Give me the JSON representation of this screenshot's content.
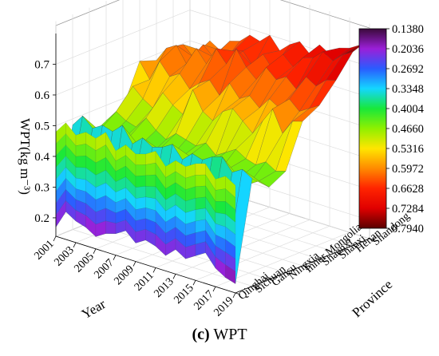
{
  "chart_data": {
    "type": "surface3d",
    "title": "",
    "zlabel": "WPT(kg m⁻³)",
    "ylabel": "Province",
    "xlabel": "Year",
    "zlim": [
      0.14,
      0.8
    ],
    "z_ticks": [
      "0.2",
      "0.3",
      "0.4",
      "0.5",
      "0.6",
      "0.7"
    ],
    "years": [
      2001,
      2002,
      2003,
      2004,
      2005,
      2006,
      2007,
      2008,
      2009,
      2010,
      2011,
      2012,
      2013,
      2014,
      2015,
      2016,
      2017,
      2018,
      2019
    ],
    "year_ticks": [
      "2001",
      "2003",
      "2005",
      "2007",
      "2009",
      "2011",
      "2013",
      "2015",
      "2017",
      "2019"
    ],
    "provinces": [
      "Qinghai",
      "Sichuan",
      "Gansu",
      "Ningxia",
      "Inner Mongolia",
      "Shaanxi",
      "Shanxi",
      "Henan",
      "Shandong"
    ],
    "values": [
      [
        0.17,
        0.23,
        0.21,
        0.2,
        0.18,
        0.2,
        0.21,
        0.23,
        0.2,
        0.22,
        0.21,
        0.19,
        0.22,
        0.2,
        0.22,
        0.24,
        0.2,
        0.18,
        0.17
      ],
      [
        0.48,
        0.52,
        0.49,
        0.51,
        0.5,
        0.53,
        0.48,
        0.51,
        0.49,
        0.5,
        0.52,
        0.48,
        0.51,
        0.5,
        0.52,
        0.53,
        0.49,
        0.51,
        0.49
      ],
      [
        0.42,
        0.45,
        0.44,
        0.43,
        0.46,
        0.44,
        0.42,
        0.45,
        0.43,
        0.44,
        0.46,
        0.43,
        0.45,
        0.44,
        0.46,
        0.44,
        0.43,
        0.45,
        0.44
      ],
      [
        0.45,
        0.49,
        0.47,
        0.46,
        0.5,
        0.47,
        0.45,
        0.48,
        0.47,
        0.46,
        0.48,
        0.45,
        0.47,
        0.49,
        0.47,
        0.46,
        0.48,
        0.46,
        0.47
      ],
      [
        0.47,
        0.55,
        0.52,
        0.5,
        0.56,
        0.53,
        0.51,
        0.6,
        0.54,
        0.52,
        0.56,
        0.58,
        0.55,
        0.52,
        0.57,
        0.62,
        0.55,
        0.6,
        0.61
      ],
      [
        0.6,
        0.55,
        0.62,
        0.58,
        0.6,
        0.56,
        0.59,
        0.61,
        0.57,
        0.62,
        0.58,
        0.6,
        0.57,
        0.61,
        0.59,
        0.63,
        0.6,
        0.62,
        0.64
      ],
      [
        0.58,
        0.63,
        0.65,
        0.6,
        0.66,
        0.62,
        0.68,
        0.64,
        0.7,
        0.65,
        0.62,
        0.67,
        0.64,
        0.66,
        0.63,
        0.68,
        0.66,
        0.69,
        0.7
      ],
      [
        0.56,
        0.62,
        0.59,
        0.64,
        0.61,
        0.6,
        0.65,
        0.66,
        0.62,
        0.67,
        0.63,
        0.69,
        0.66,
        0.7,
        0.71,
        0.74,
        0.72,
        0.75,
        0.77
      ],
      [
        0.52,
        0.58,
        0.62,
        0.6,
        0.64,
        0.65,
        0.68,
        0.67,
        0.7,
        0.66,
        0.69,
        0.71,
        0.68,
        0.72,
        0.7,
        0.73,
        0.74,
        0.76,
        0.79
      ]
    ],
    "colorbar": {
      "labels": [
        "0.1380",
        "0.2036",
        "0.2692",
        "0.3348",
        "0.4004",
        "0.4660",
        "0.5316",
        "0.5972",
        "0.6628",
        "0.7284",
        "0.7940"
      ],
      "colors": [
        "#3a0a3a",
        "#9b1fd8",
        "#2a5cff",
        "#14d6ff",
        "#18e83a",
        "#8ff000",
        "#ffe600",
        "#ff8a00",
        "#ff2400",
        "#e00000",
        "#5a0000"
      ]
    },
    "grid": true
  },
  "caption": {
    "label": "(c)",
    "text": "WPT"
  }
}
